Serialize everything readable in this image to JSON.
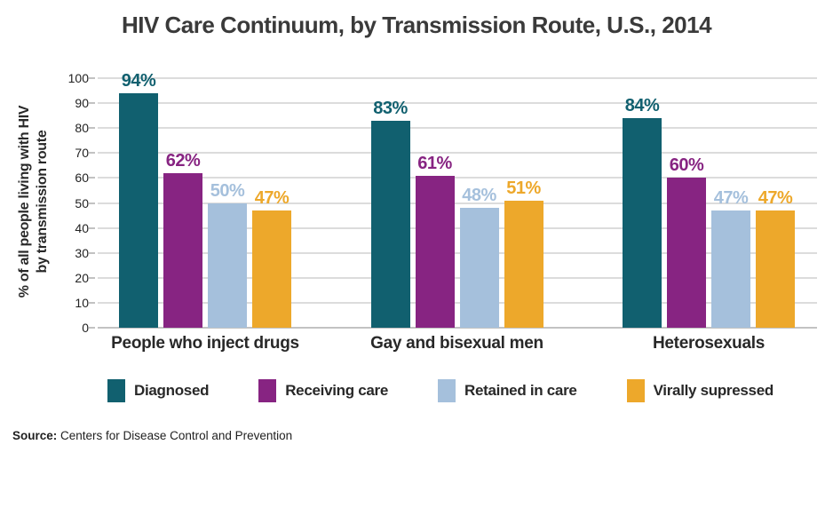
{
  "title": "HIV Care Continuum, by Transmission Route, U.S., 2014",
  "chart_data": {
    "type": "bar",
    "title": "HIV Care Continuum, by Transmission Route, U.S., 2014",
    "ylabel_lines": [
      "% of all people living with HIV",
      "by transmission route"
    ],
    "ylim": [
      0,
      100
    ],
    "yticks": [
      0,
      10,
      20,
      30,
      40,
      50,
      60,
      70,
      80,
      90,
      100
    ],
    "grid": true,
    "legend_position": "bottom",
    "value_suffix": "%",
    "categories": [
      "People who inject drugs",
      "Gay and bisexual men",
      "Heterosexuals"
    ],
    "series": [
      {
        "name": "Diagnosed",
        "color": "#11606f",
        "values": [
          94,
          83,
          84
        ]
      },
      {
        "name": "Receiving care",
        "color": "#872482",
        "values": [
          62,
          61,
          60
        ]
      },
      {
        "name": "Retained in care",
        "color": "#a5c0dc",
        "values": [
          50,
          48,
          47
        ]
      },
      {
        "name": "Virally supressed",
        "color": "#eda82b",
        "values": [
          47,
          51,
          47
        ]
      }
    ]
  },
  "source": {
    "label": "Source:",
    "text": "Centers for Disease Control and Prevention"
  },
  "colors": {
    "grid": "#dcdcdc",
    "axis": "#c2c2c2",
    "title_text": "#3a3a3a",
    "label_text": "#282828"
  }
}
